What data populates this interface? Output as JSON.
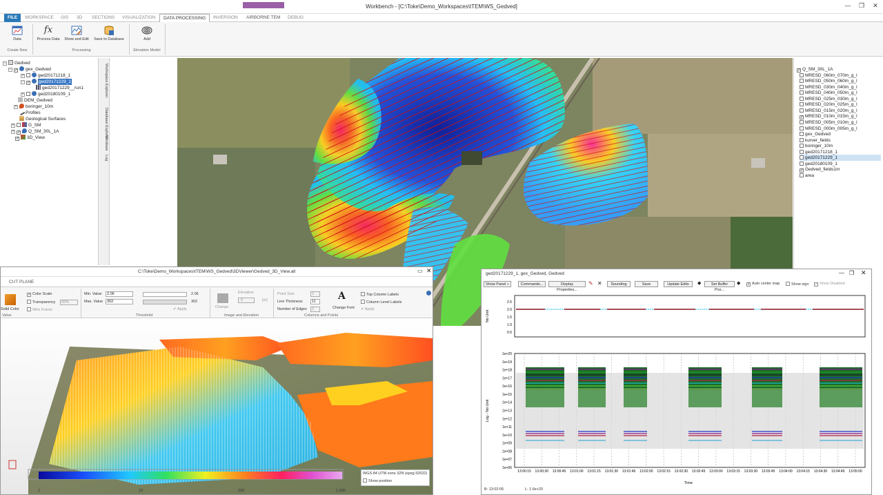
{
  "window": {
    "title": "Workbench - [C:\\Toke\\Demo_Workspaces\\tTEM\\WS_Gedved]",
    "minimize": "—",
    "restore": "❐",
    "close": "✕"
  },
  "menu": {
    "items": [
      "FILE",
      "WORKSPACE",
      "GIS",
      "3D",
      "SECTIONS",
      "VISUALIZATION",
      "DATA PROCESSING",
      "INVERSION",
      "AIRBORNE TEM",
      "DEBUG"
    ],
    "active": "DATA PROCESSING"
  },
  "ribbon": {
    "buttons": [
      {
        "label": "Data",
        "icon": "data-icon"
      },
      {
        "label": "Process Data",
        "icon": "function-icon"
      },
      {
        "label": "Show and Edit",
        "icon": "chart-edit-icon"
      },
      {
        "label": "Save to Database",
        "icon": "database-save-icon"
      },
      {
        "label": "Add",
        "icon": "elevation-model-icon"
      }
    ],
    "groups": [
      "Create New",
      "Processing",
      "Elevation Model"
    ]
  },
  "tree": {
    "root": "Gedved",
    "items": [
      {
        "label": "gex_Gedved",
        "checked": true
      },
      {
        "label": "ged20171218_1",
        "checked": false
      },
      {
        "label": "ged20171229_1",
        "checked": true,
        "selected": true
      },
      {
        "label": "ged20171229__run1",
        "checked": false
      },
      {
        "label": "ged20180109_1",
        "checked": false
      },
      {
        "label": "DEM_Gedved",
        "checked": false
      },
      {
        "label": "boringer_10m",
        "checked": false
      },
      {
        "label": "Profiles",
        "checked": false
      },
      {
        "label": "Geological Surfaces",
        "checked": false
      },
      {
        "label": "G_SM",
        "checked": false
      },
      {
        "label": "Q_SM_30L_1A",
        "checked": true
      },
      {
        "label": "3D_View",
        "checked": true
      }
    ]
  },
  "side_tabs": [
    "Workspace Explorer",
    "Database Explorer",
    "Windows",
    "Log"
  ],
  "layers": {
    "items": [
      {
        "label": "Q_SM_30L_1A",
        "checked": true
      },
      {
        "label": "MRESD_060m_070m_g_l",
        "checked": false
      },
      {
        "label": "MRESD_050m_060m_g_l",
        "checked": false
      },
      {
        "label": "MRESD_030m_040m_g_l",
        "checked": false
      },
      {
        "label": "MRESD_040m_050m_g_l",
        "checked": false
      },
      {
        "label": "MRESD_025m_030m_g_l",
        "checked": false
      },
      {
        "label": "MRESD_020m_025m_g_l",
        "checked": false
      },
      {
        "label": "MRESD_015m_020m_g_l",
        "checked": false
      },
      {
        "label": "MRESD_010m_015m_g_l",
        "checked": true
      },
      {
        "label": "MRESD_005m_010m_g_l",
        "checked": false
      },
      {
        "label": "MRESD_000m_005m_g_l",
        "checked": false
      },
      {
        "label": "gex_Gedved",
        "checked": false
      },
      {
        "label": "kurver_fields",
        "checked": false
      },
      {
        "label": "boringer_10m",
        "checked": false
      },
      {
        "label": "ged20171218_1",
        "checked": false
      },
      {
        "label": "ged20171229_1",
        "checked": false,
        "selected": true
      },
      {
        "label": "ged20180109_1",
        "checked": false
      },
      {
        "label": "Gedved_fields1m",
        "checked": true
      },
      {
        "label": "area",
        "checked": false
      }
    ]
  },
  "view3d": {
    "title": "C:\\Toke\\Demo_Workspaces\\tTEM\\WS_Gedved\\3DViewer\\Gedved_3D_View.all",
    "tab": "CUT PLANE",
    "solid_color": "Solid Color",
    "value_label": "Value",
    "color_scale": "Color Scale",
    "transparency": "Transparency",
    "transparency_value": "50%",
    "wire_frame": "Wire Frame",
    "min_label": "Min. Value",
    "min_value": "2.06",
    "max_label": "Max. Value",
    "max_value": "302",
    "slider_min": "2.06",
    "slider_max": "302",
    "apply": "Apply",
    "threshold_label": "Threshold",
    "elevation": "Elevation",
    "elevation_value": "-3",
    "elevation_unit": "[m]",
    "change": "Change",
    "image_elev_label": "Image and Elevation",
    "point_size": "Point Size",
    "point_size_value": "2",
    "line_thickness": "Line Thickness",
    "line_thickness_value": "11",
    "num_edges": "Number of Edges",
    "num_edges_value": "2",
    "change_font": "Change Font",
    "top_col_labels": "Top Column Labels",
    "col_level_labels": "Column Level Labels",
    "apply2": "Apply",
    "columns_points_label": "Columns and Points",
    "colorbar_ticks": [
      "1",
      "10",
      "100",
      "1,000"
    ],
    "crs": "WGS 84 UTM zone 32N (epsg:32632)",
    "show_position": "Show position"
  },
  "plot": {
    "title": "ged20171229_1, gex_Gedved, Gedved",
    "buttons": [
      "Show Panel »",
      "Commands...",
      "Display Properties...",
      "Sounding",
      "Save",
      "Update Edits",
      "Set Buffer Pos..."
    ],
    "auto_center": "Auto center map",
    "show_sign": "Show sign",
    "show_disabled": "Show Disabled",
    "top_ylabel": "No Unit",
    "top_yticks": [
      "2.5",
      "2.0",
      "1.5",
      "1.0",
      "0.5"
    ],
    "bottom_ylabel": "Log - No Unit",
    "bottom_yticks": [
      "1e+20",
      "1e+19",
      "1e+18",
      "1e+17",
      "1e+16",
      "1e+15",
      "1e+14",
      "1e+13",
      "1e+12",
      "1e+11",
      "1e+10",
      "1e+09",
      "1e+08",
      "1e+07",
      "1e+06"
    ],
    "xticks": [
      "13:00:15",
      "13:00:30",
      "13:00:45",
      "13:01:00",
      "13:01:15",
      "13:01:30",
      "13:01:45",
      "13:02:00",
      "13:02:15",
      "13:02:30",
      "13:02:45",
      "13:03:00",
      "13:03:15",
      "13:03:30",
      "13:03:45",
      "13:04:00",
      "13:04:15",
      "13:04:30",
      "13:04:45",
      "13:05:00"
    ],
    "xlabel": "Time",
    "status_b": "B: 13:02:05",
    "status_l": "L: 1.6e+20"
  }
}
